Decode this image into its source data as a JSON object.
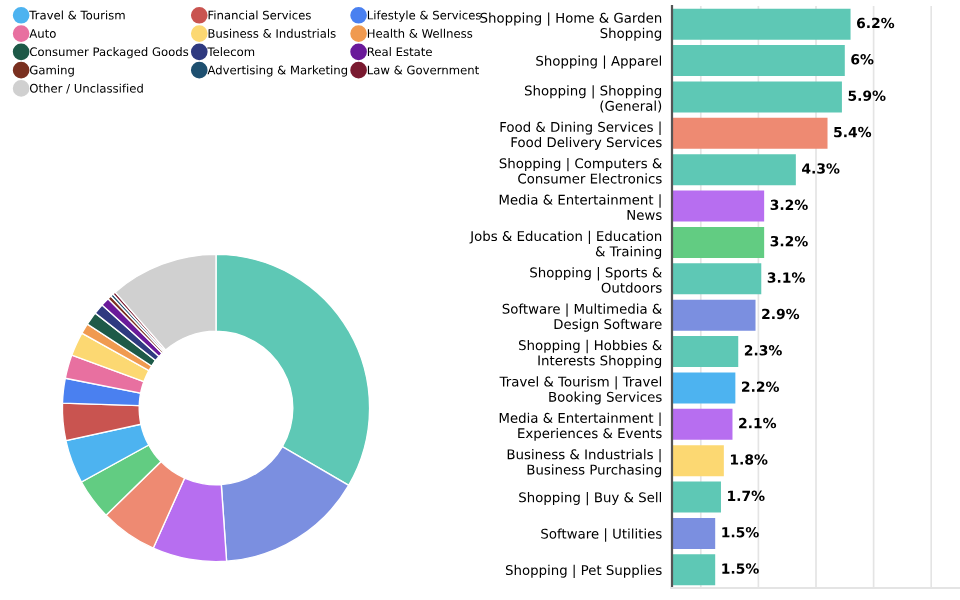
{
  "chart_data": [
    {
      "type": "donut",
      "categories": [
        null,
        null,
        null,
        null,
        null,
        "Travel & Tourism",
        "Financial Services",
        "Lifestyle & Services",
        "Auto",
        "Business & Industrials",
        "Health & Wellness",
        "Consumer Packaged Goods",
        "Telecom",
        "Real Estate",
        "Gaming",
        "Advertising & Marketing",
        "Law & Government",
        "Other / Unclassified"
      ],
      "values": [
        33.4,
        15.5,
        7.8,
        6,
        4.3,
        4.6,
        3.9,
        2.6,
        2.5,
        2.5,
        1.1,
        1.4,
        1.1,
        0.9,
        0.4,
        0.3,
        0.3,
        11.4
      ],
      "colors": [
        "#5ec8b5",
        "#7b8fe0",
        "#b76ef0",
        "#ee8a72",
        "#62cc82",
        "#4db3f0",
        "#c95450",
        "#4a80f0",
        "#e870a0",
        "#fcd872",
        "#f09a50",
        "#1e5a48",
        "#2f3a80",
        "#6a1a9a",
        "#7a3020",
        "#1e5070",
        "#7a1a30",
        "#d0d0d0"
      ],
      "legend": "top"
    },
    {
      "type": "bar",
      "orientation": "horizontal",
      "categories": [
        "Shopping | Home & Garden\nShopping",
        "Shopping | Apparel",
        "Shopping | Shopping\n(General)",
        "Food & Dining Services |\nFood Delivery Services",
        "Shopping | Computers &\nConsumer Electronics",
        "Media & Entertainment |\nNews",
        "Jobs & Education | Education\n& Training",
        "Shopping | Sports &\nOutdoors",
        "Software | Multimedia &\nDesign Software",
        "Shopping | Hobbies &\nInterests Shopping",
        "Travel & Tourism | Travel\nBooking Services",
        "Media & Entertainment |\nExperiences & Events",
        "Business & Industrials |\nBusiness Purchasing",
        "Shopping | Buy & Sell",
        "Software | Utilities",
        "Shopping | Pet Supplies"
      ],
      "values": [
        6.2,
        6,
        5.9,
        5.4,
        4.3,
        3.2,
        3.2,
        3.1,
        2.9,
        2.3,
        2.2,
        2.1,
        1.8,
        1.7,
        1.5,
        1.5
      ],
      "value_labels": [
        "6.2%",
        "6%",
        "5.9%",
        "5.4%",
        "4.3%",
        "3.2%",
        "3.2%",
        "3.1%",
        "2.9%",
        "2.3%",
        "2.2%",
        "2.1%",
        "1.8%",
        "1.7%",
        "1.5%",
        "1.5%"
      ],
      "colors": [
        "#5ec8b5",
        "#5ec8b5",
        "#5ec8b5",
        "#ee8a72",
        "#5ec8b5",
        "#b76ef0",
        "#62cc82",
        "#5ec8b5",
        "#7b8fe0",
        "#5ec8b5",
        "#4db3f0",
        "#b76ef0",
        "#fcd872",
        "#5ec8b5",
        "#7b8fe0",
        "#5ec8b5"
      ],
      "xlim": [
        0,
        10
      ],
      "xticks": [
        {
          "value": 1,
          "label": null
        },
        {
          "value": 3,
          "label": null
        },
        {
          "value": 5,
          "label": null
        },
        {
          "value": 7,
          "label": null
        },
        {
          "value": 9,
          "label": null
        }
      ],
      "grid": "x",
      "tick_labels": "y"
    }
  ]
}
